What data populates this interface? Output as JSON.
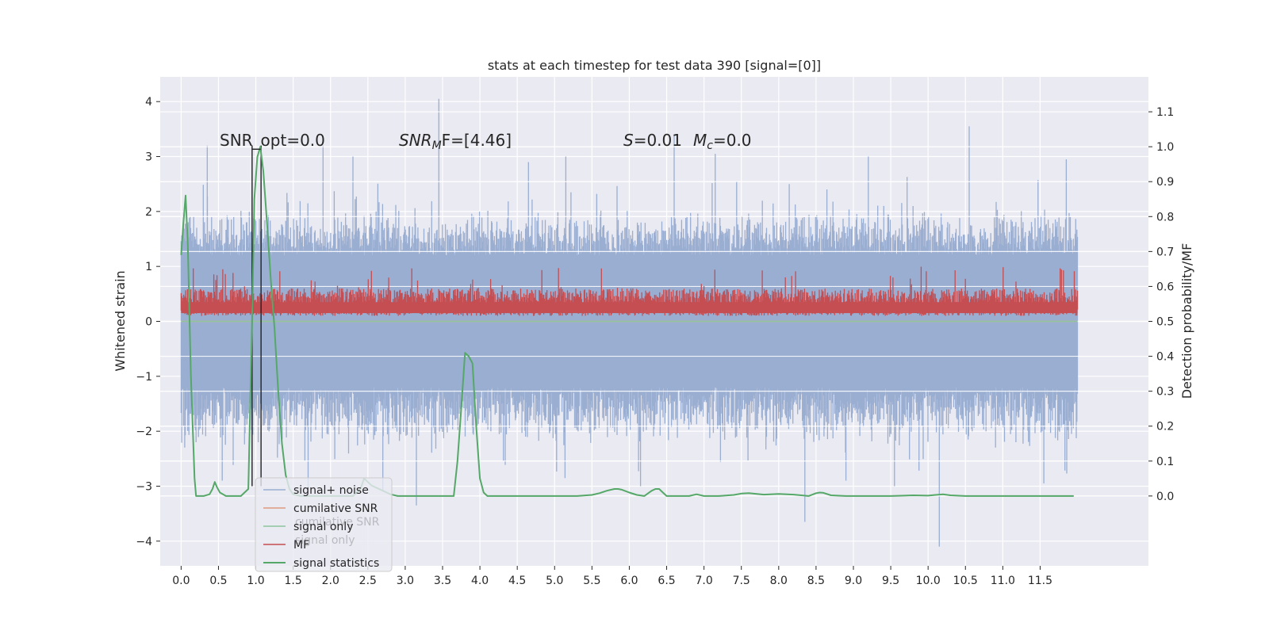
{
  "chart_data": {
    "type": "line",
    "title": "stats at each timestep for test data 390 [signal=[0]]",
    "ylabel": "Whitened strain",
    "y2label": "Detection probability/MF",
    "xlim": [
      -0.28,
      12.95
    ],
    "ylim": [
      -4.45,
      4.45
    ],
    "y2lim": [
      -0.2,
      1.2
    ],
    "x_ticks": [
      0.0,
      0.5,
      1.0,
      1.5,
      2.0,
      2.5,
      3.0,
      3.5,
      4.0,
      4.5,
      5.0,
      5.5,
      6.0,
      6.5,
      7.0,
      7.5,
      8.0,
      8.5,
      9.0,
      9.5,
      10.0,
      10.5,
      11.0,
      11.5
    ],
    "x_tick_labels": [
      "0.0",
      "0.5",
      "1.0",
      "1.5",
      "2.0",
      "2.5",
      "3.0",
      "3.5",
      "4.0",
      "4.5",
      "5.0",
      "5.5",
      "6.0",
      "6.5",
      "7.0",
      "7.5",
      "8.0",
      "8.5",
      "9.0",
      "9.5",
      "10.0",
      "10.5",
      "11.0",
      "11.5"
    ],
    "y_ticks": [
      -4,
      -3,
      -2,
      -1,
      0,
      1,
      2,
      3,
      4
    ],
    "y_tick_labels": [
      "−4",
      "−3",
      "−2",
      "−1",
      "0",
      "1",
      "2",
      "3",
      "4"
    ],
    "y2_ticks": [
      0.0,
      0.1,
      0.2,
      0.3,
      0.4,
      0.5,
      0.6,
      0.7,
      0.8,
      0.9,
      1.0,
      1.1
    ],
    "y2_tick_labels": [
      "0.0",
      "0.1",
      "0.2",
      "0.3",
      "0.4",
      "0.5",
      "0.6",
      "0.7",
      "0.8",
      "0.9",
      "1.0",
      "1.1"
    ],
    "grid": true,
    "legend_position": "lower-left",
    "annotations": {
      "snr_opt": "SNR_opt=0.0",
      "snr_mf_main": "SNR",
      "snr_mf_sub": "M",
      "snr_mf_rest": "F=[4.46]",
      "s_symbol": "S",
      "s_value": "=0.01",
      "mc_symbol": "M",
      "mc_sub": "c",
      "mc_value": "=0.0"
    },
    "legend": [
      {
        "label": "signal+ noise",
        "color": "#9aaed2"
      },
      {
        "label": "cumilative SNR",
        "color": "#dd9a7c"
      },
      {
        "label": "signal only",
        "color": "#8cc49c"
      },
      {
        "label": "MF",
        "color": "#c44e52"
      },
      {
        "label": "signal statistics",
        "color": "#55a868"
      }
    ],
    "legend_ghost_labels": [
      "cumilative SNR",
      "signal only"
    ],
    "series": [
      {
        "name": "signal+ noise",
        "color": "#9aaed2",
        "axis": "left",
        "envelope": {
          "x_start": 0.0,
          "x_end": 12.0,
          "upper_typical": 1.8,
          "lower_typical": -2.0,
          "core_upper": 1.2,
          "core_lower": -1.2
        },
        "peaks": [
          {
            "x": 3.45,
            "y": 4.05
          },
          {
            "x": 10.55,
            "y": 3.55
          },
          {
            "x": 10.15,
            "y": -4.1
          },
          {
            "x": 8.35,
            "y": -3.65
          },
          {
            "x": 6.6,
            "y": 3.4
          },
          {
            "x": 0.35,
            "y": 3.2
          },
          {
            "x": 3.15,
            "y": -3.35
          },
          {
            "x": 11.55,
            "y": -2.95
          },
          {
            "x": 0.55,
            "y": -2.9
          },
          {
            "x": 2.3,
            "y": 3.0
          },
          {
            "x": 5.15,
            "y": 3.0
          },
          {
            "x": 9.2,
            "y": 3.0
          },
          {
            "x": 1.9,
            "y": 3.2
          },
          {
            "x": 1.7,
            "y": -3.15
          },
          {
            "x": 11.85,
            "y": 2.95
          },
          {
            "x": 7.15,
            "y": 3.05
          },
          {
            "x": 6.15,
            "y": -3.0
          },
          {
            "x": 9.55,
            "y": -3.0
          },
          {
            "x": 4.65,
            "y": 2.9
          },
          {
            "x": 8.9,
            "y": -2.9
          },
          {
            "x": 2.7,
            "y": -3.1
          },
          {
            "x": 0.2,
            "y": -2.2
          }
        ]
      },
      {
        "name": "MF",
        "color": "#c44e52",
        "axis": "left",
        "band": {
          "x_start": 0.0,
          "x_end": 12.0,
          "upper_typical": 0.6,
          "lower_typical": 0.1,
          "max_spike": 1.0
        }
      },
      {
        "name": "signal statistics",
        "color": "#55a868",
        "axis": "right",
        "x": [
          0.0,
          0.03,
          0.06,
          0.09,
          0.13,
          0.18,
          0.2,
          0.3,
          0.38,
          0.42,
          0.45,
          0.48,
          0.52,
          0.6,
          0.7,
          0.8,
          0.9,
          0.95,
          0.98,
          1.02,
          1.06,
          1.1,
          1.15,
          1.2,
          1.25,
          1.3,
          1.35,
          1.4,
          1.45,
          1.5,
          1.6,
          1.7,
          1.8,
          2.0,
          2.2,
          2.3,
          2.4,
          2.45,
          2.5,
          2.55,
          2.6,
          2.7,
          2.8,
          2.9,
          3.0,
          3.2,
          3.4,
          3.6,
          3.65,
          3.7,
          3.75,
          3.8,
          3.85,
          3.9,
          3.95,
          4.0,
          4.05,
          4.1,
          4.3,
          4.6,
          5.0,
          5.3,
          5.5,
          5.6,
          5.7,
          5.8,
          5.85,
          5.9,
          6.0,
          6.1,
          6.2,
          6.3,
          6.35,
          6.4,
          6.45,
          6.5,
          6.6,
          6.8,
          6.9,
          7.0,
          7.2,
          7.4,
          7.5,
          7.6,
          7.8,
          8.0,
          8.2,
          8.4,
          8.5,
          8.55,
          8.6,
          8.7,
          8.9,
          9.2,
          9.5,
          9.8,
          10.0,
          10.1,
          10.2,
          10.3,
          10.5,
          10.8,
          11.0,
          11.3,
          11.6,
          11.8,
          11.95
        ],
        "values": [
          0.69,
          0.78,
          0.86,
          0.72,
          0.35,
          0.05,
          0.0,
          0.0,
          0.005,
          0.02,
          0.04,
          0.025,
          0.01,
          0.0,
          0.0,
          0.0,
          0.02,
          0.5,
          0.85,
          0.97,
          1.0,
          0.93,
          0.78,
          0.62,
          0.48,
          0.3,
          0.15,
          0.06,
          0.02,
          0.005,
          0.0,
          0.0,
          0.0,
          0.0,
          0.0,
          0.0,
          0.02,
          0.05,
          0.04,
          0.03,
          0.025,
          0.015,
          0.005,
          0.0,
          0.0,
          0.0,
          0.0,
          0.0,
          0.0,
          0.1,
          0.25,
          0.41,
          0.4,
          0.38,
          0.2,
          0.05,
          0.01,
          0.0,
          0.0,
          0.0,
          0.0,
          0.0,
          0.003,
          0.008,
          0.015,
          0.02,
          0.02,
          0.018,
          0.01,
          0.003,
          0.0,
          0.015,
          0.02,
          0.02,
          0.01,
          0.0,
          0.0,
          0.0,
          0.005,
          0.0,
          0.0,
          0.003,
          0.007,
          0.008,
          0.004,
          0.006,
          0.004,
          0.0,
          0.008,
          0.01,
          0.009,
          0.002,
          0.0,
          0.0,
          0.0,
          0.002,
          0.001,
          0.003,
          0.005,
          0.002,
          0.0,
          0.0,
          0.0,
          0.0,
          0.0,
          0.0,
          0.0
        ]
      },
      {
        "name": "cumilative SNR",
        "color": "#dd9a7c",
        "axis": "left",
        "values_note_free": true,
        "x": [
          0.0,
          12.0
        ],
        "values": [
          0.0,
          0.0
        ]
      },
      {
        "name": "signal only",
        "color": "#8cc49c",
        "axis": "left",
        "x": [
          0.0,
          12.0
        ],
        "values": [
          0.0,
          0.0
        ]
      }
    ],
    "vertical_lines": [
      {
        "x": 0.95,
        "color": "#222222"
      },
      {
        "x": 1.07,
        "color": "#222222"
      }
    ]
  }
}
